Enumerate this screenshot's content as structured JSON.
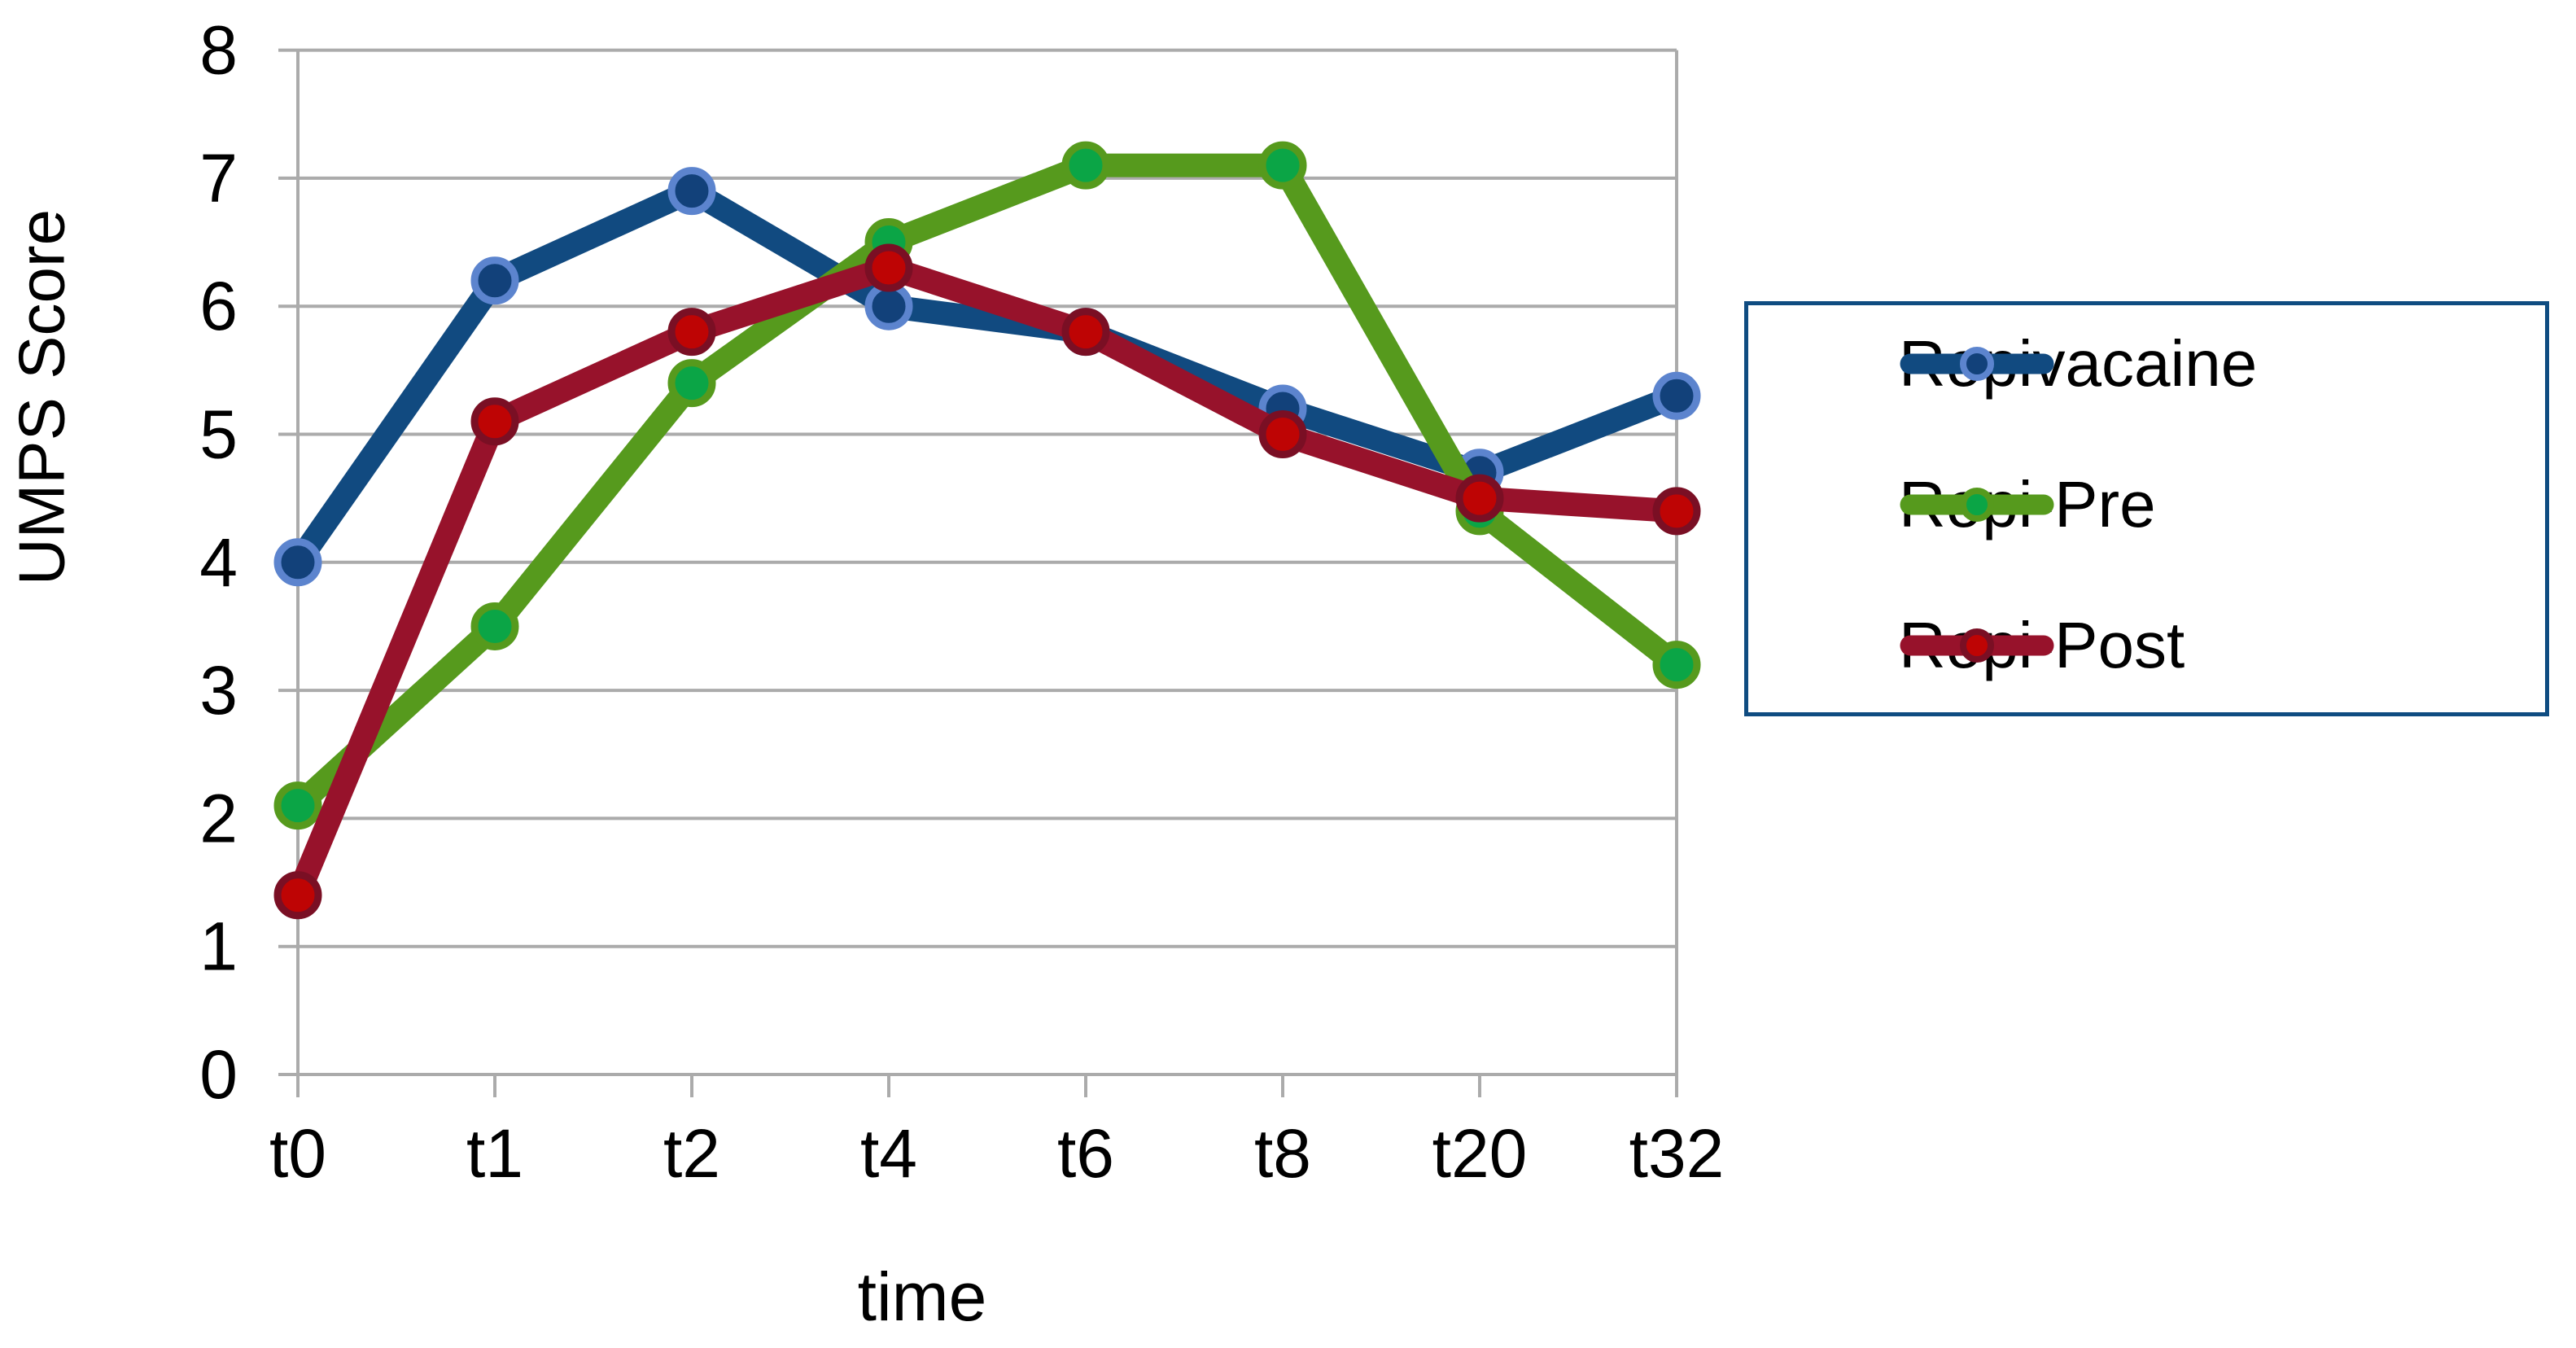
{
  "chart_data": {
    "type": "line",
    "title": "",
    "xlabel": "time",
    "ylabel": "UMPS Score",
    "categories": [
      "t0",
      "t1",
      "t2",
      "t4",
      "t6",
      "t8",
      "t20",
      "t32"
    ],
    "yticks": [
      0,
      1,
      2,
      3,
      4,
      5,
      6,
      7,
      8
    ],
    "ylim": [
      0,
      8
    ],
    "grid": "horizontal-only",
    "legend_position": "right",
    "series": [
      {
        "name": "Ropivacaine",
        "values": [
          4.0,
          6.2,
          6.9,
          6.0,
          5.8,
          5.2,
          4.7,
          5.3
        ],
        "line_color": "#114A80",
        "marker_fill": "#12417A",
        "marker_edge": "#5C84CE"
      },
      {
        "name": "Ropi-Pre",
        "values": [
          2.1,
          3.5,
          5.4,
          6.5,
          7.1,
          7.1,
          4.4,
          3.2
        ],
        "line_color": "#569A1D",
        "marker_fill": "#0BA546",
        "marker_edge": "#569A1D"
      },
      {
        "name": "Ropi-Post",
        "values": [
          1.4,
          5.1,
          5.8,
          6.3,
          5.8,
          5.0,
          4.5,
          4.4
        ],
        "line_color": "#97122B",
        "marker_fill": "#BE0404",
        "marker_edge": "#7A0F24"
      }
    ],
    "colors": {
      "grid": "#ABABAB",
      "text": "#000000",
      "legend_border": "#0F4C81",
      "background": "#FFFFFF"
    }
  }
}
